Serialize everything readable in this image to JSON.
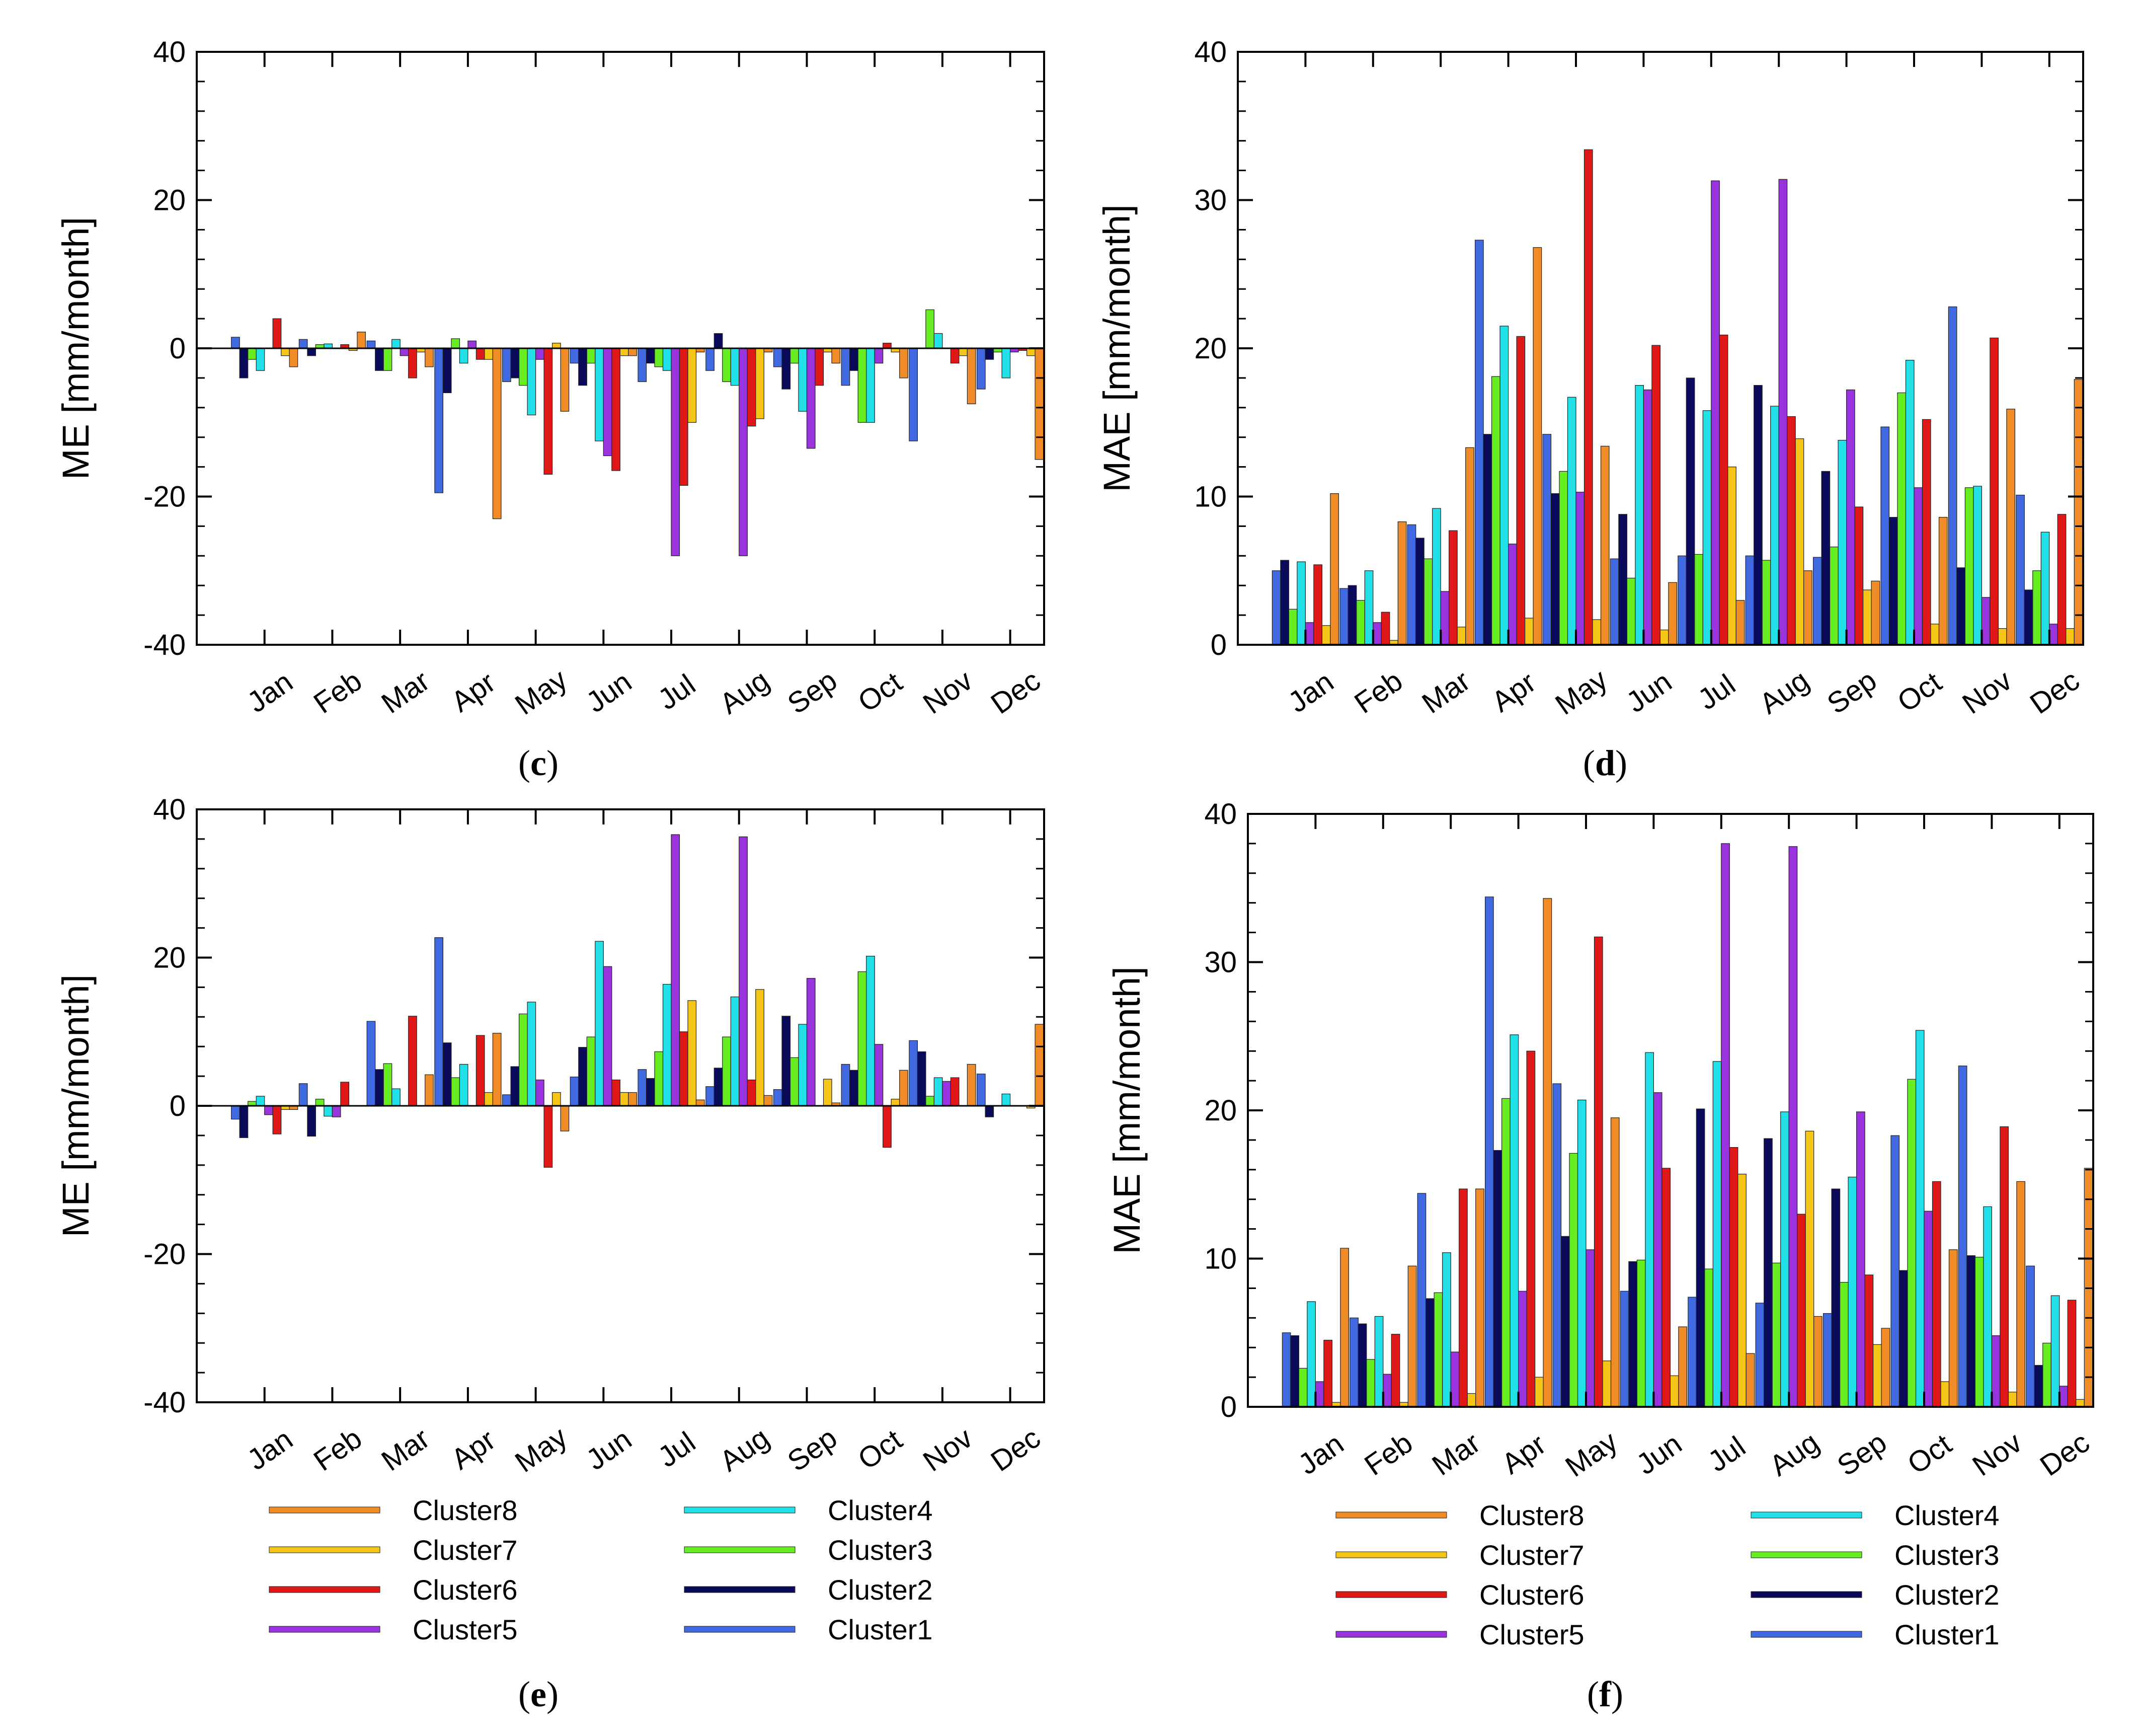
{
  "colors": {
    "Cluster1": "#4169e1",
    "Cluster2": "#0a0a5a",
    "Cluster3": "#66ee22",
    "Cluster4": "#22e0e8",
    "Cluster5": "#9933dd",
    "Cluster6": "#e01818",
    "Cluster7": "#f5c518",
    "Cluster8": "#f08c28"
  },
  "legend": {
    "left": [
      "Cluster8",
      "Cluster7",
      "Cluster6",
      "Cluster5"
    ],
    "right": [
      "Cluster4",
      "Cluster3",
      "Cluster2",
      "Cluster1"
    ]
  },
  "chart_data": [
    {
      "id": "c",
      "type": "bar",
      "caption_letter": "c",
      "ylabel": "ME [mm/month]",
      "ylim": [
        -40,
        40
      ],
      "yticks": [
        -40,
        -20,
        0,
        20,
        40
      ],
      "categories": [
        "Jan",
        "Feb",
        "Mar",
        "Apr",
        "May",
        "Jun",
        "Jul",
        "Aug",
        "Sep",
        "Oct",
        "Nov",
        "Dec"
      ],
      "series": [
        {
          "name": "Cluster1",
          "values": [
            1.5,
            1.2,
            1.0,
            -19.5,
            -4.5,
            -2.0,
            -4.5,
            -3.0,
            -2.5,
            -5.0,
            -12.5,
            -5.5
          ]
        },
        {
          "name": "Cluster2",
          "values": [
            -4.0,
            -1.0,
            -3.0,
            -6.0,
            -4.0,
            -5.0,
            -2.0,
            2.0,
            -5.5,
            -3.0,
            0.0,
            -1.5
          ]
        },
        {
          "name": "Cluster3",
          "values": [
            -1.5,
            0.5,
            -3.0,
            1.3,
            -5.0,
            -2.0,
            -2.5,
            -4.5,
            -2.0,
            -10.0,
            5.2,
            -0.5
          ]
        },
        {
          "name": "Cluster4",
          "values": [
            -3.0,
            0.6,
            1.2,
            -2.0,
            -9.0,
            -12.5,
            -3.0,
            -5.0,
            -8.5,
            -10.0,
            2.0,
            -4.0
          ]
        },
        {
          "name": "Cluster5",
          "values": [
            0.0,
            0.0,
            -1.0,
            1.0,
            -1.5,
            -14.5,
            -28.0,
            -28.0,
            -13.5,
            -2.0,
            0.0,
            -0.5
          ]
        },
        {
          "name": "Cluster6",
          "values": [
            4.0,
            0.5,
            -4.0,
            -1.5,
            -17.0,
            -16.5,
            -18.5,
            -10.5,
            -5.0,
            0.7,
            -2.0,
            -0.3
          ]
        },
        {
          "name": "Cluster7",
          "values": [
            -1.0,
            -0.3,
            -0.5,
            -1.5,
            0.7,
            -1.0,
            -10.0,
            -9.5,
            -0.5,
            -0.5,
            -1.0,
            -1.0
          ]
        },
        {
          "name": "Cluster8",
          "values": [
            -2.5,
            2.2,
            -2.5,
            -23.0,
            -8.5,
            -1.0,
            -0.5,
            -0.5,
            -2.0,
            -4.0,
            -7.5,
            -15.0
          ]
        }
      ]
    },
    {
      "id": "d",
      "type": "bar",
      "caption_letter": "d",
      "ylabel": "MAE [mm/month]",
      "ylim": [
        0,
        40
      ],
      "yticks": [
        0,
        10,
        20,
        30,
        40
      ],
      "categories": [
        "Jan",
        "Feb",
        "Mar",
        "Apr",
        "May",
        "Jun",
        "Jul",
        "Aug",
        "Sep",
        "Oct",
        "Nov",
        "Dec"
      ],
      "series": [
        {
          "name": "Cluster1",
          "values": [
            5.0,
            3.8,
            8.1,
            27.3,
            14.2,
            5.8,
            6.0,
            6.0,
            5.9,
            14.7,
            22.8,
            10.1
          ]
        },
        {
          "name": "Cluster2",
          "values": [
            5.7,
            4.0,
            7.2,
            14.2,
            10.2,
            8.8,
            18.0,
            17.5,
            11.7,
            8.6,
            5.2,
            3.7
          ]
        },
        {
          "name": "Cluster3",
          "values": [
            2.4,
            3.0,
            5.8,
            18.1,
            11.7,
            4.5,
            6.1,
            5.7,
            6.6,
            17.0,
            10.6,
            5.0
          ]
        },
        {
          "name": "Cluster4",
          "values": [
            5.6,
            5.0,
            9.2,
            21.5,
            16.7,
            17.5,
            15.8,
            16.1,
            13.8,
            19.2,
            10.7,
            7.6
          ]
        },
        {
          "name": "Cluster5",
          "values": [
            1.5,
            1.5,
            3.6,
            6.8,
            10.3,
            17.2,
            31.3,
            31.4,
            17.2,
            10.6,
            3.2,
            1.4
          ]
        },
        {
          "name": "Cluster6",
          "values": [
            5.4,
            2.2,
            7.7,
            20.8,
            33.4,
            20.2,
            20.9,
            15.4,
            9.3,
            15.2,
            20.7,
            8.8
          ]
        },
        {
          "name": "Cluster7",
          "values": [
            1.3,
            0.3,
            1.2,
            1.8,
            1.7,
            1.0,
            12.0,
            13.9,
            3.7,
            1.4,
            1.1,
            1.1
          ]
        },
        {
          "name": "Cluster8",
          "values": [
            10.2,
            8.3,
            13.3,
            26.8,
            13.4,
            4.2,
            3.0,
            5.0,
            4.3,
            8.6,
            15.9,
            17.9
          ]
        }
      ]
    },
    {
      "id": "e",
      "type": "bar",
      "caption_letter": "e",
      "ylabel": "ME [mm/month]",
      "ylim": [
        -40,
        40
      ],
      "yticks": [
        -40,
        -20,
        0,
        20,
        40
      ],
      "categories": [
        "Jan",
        "Feb",
        "Mar",
        "Apr",
        "May",
        "Jun",
        "Jul",
        "Aug",
        "Sep",
        "Oct",
        "Nov",
        "Dec"
      ],
      "series": [
        {
          "name": "Cluster1",
          "values": [
            -1.8,
            3.0,
            11.4,
            22.7,
            1.5,
            3.9,
            4.9,
            2.6,
            2.2,
            5.6,
            8.8,
            4.3
          ]
        },
        {
          "name": "Cluster2",
          "values": [
            -4.3,
            -4.1,
            4.9,
            8.5,
            5.3,
            7.9,
            3.7,
            5.1,
            12.1,
            4.8,
            7.3,
            -1.5
          ]
        },
        {
          "name": "Cluster3",
          "values": [
            0.6,
            0.9,
            5.7,
            3.8,
            12.4,
            9.3,
            7.3,
            9.3,
            6.5,
            18.1,
            1.3,
            0.0
          ]
        },
        {
          "name": "Cluster4",
          "values": [
            1.3,
            -1.4,
            2.3,
            5.6,
            14.0,
            22.2,
            16.4,
            14.7,
            11.0,
            20.2,
            3.8,
            1.6
          ]
        },
        {
          "name": "Cluster5",
          "values": [
            -1.2,
            -1.5,
            0.0,
            0.0,
            3.5,
            18.8,
            36.6,
            36.3,
            17.2,
            8.3,
            3.3,
            0.0
          ]
        },
        {
          "name": "Cluster6",
          "values": [
            -3.8,
            3.2,
            12.1,
            9.5,
            -8.3,
            3.5,
            10.0,
            3.5,
            0.0,
            -5.6,
            3.8,
            0.0
          ]
        },
        {
          "name": "Cluster7",
          "values": [
            -0.5,
            0.0,
            0.0,
            1.8,
            1.8,
            1.8,
            14.2,
            15.7,
            3.6,
            0.9,
            0.0,
            -0.3
          ]
        },
        {
          "name": "Cluster8",
          "values": [
            -0.5,
            0.0,
            4.2,
            9.8,
            -3.4,
            1.8,
            0.8,
            1.4,
            0.4,
            4.8,
            5.6,
            11.0
          ]
        }
      ]
    },
    {
      "id": "f",
      "type": "bar",
      "caption_letter": "f",
      "ylabel": "MAE [mm/month]",
      "ylim": [
        0,
        40
      ],
      "yticks": [
        0,
        10,
        20,
        30,
        40
      ],
      "categories": [
        "Jan",
        "Feb",
        "Mar",
        "Apr",
        "May",
        "Jun",
        "Jul",
        "Aug",
        "Sep",
        "Oct",
        "Nov",
        "Dec"
      ],
      "series": [
        {
          "name": "Cluster1",
          "values": [
            5.0,
            6.0,
            14.4,
            34.4,
            21.8,
            7.8,
            7.4,
            7.0,
            6.3,
            18.3,
            23.0,
            9.5
          ]
        },
        {
          "name": "Cluster2",
          "values": [
            4.8,
            5.6,
            7.3,
            17.3,
            11.5,
            9.8,
            20.1,
            18.1,
            14.7,
            9.2,
            10.2,
            2.8
          ]
        },
        {
          "name": "Cluster3",
          "values": [
            2.6,
            3.2,
            7.7,
            20.8,
            17.1,
            9.9,
            9.3,
            9.7,
            8.4,
            22.1,
            10.1,
            4.3
          ]
        },
        {
          "name": "Cluster4",
          "values": [
            7.1,
            6.1,
            10.4,
            25.1,
            20.7,
            23.9,
            23.3,
            19.9,
            15.5,
            25.4,
            13.5,
            7.5
          ]
        },
        {
          "name": "Cluster5",
          "values": [
            1.7,
            2.2,
            3.7,
            7.8,
            10.6,
            21.2,
            38.0,
            37.8,
            19.9,
            13.2,
            4.8,
            1.4
          ]
        },
        {
          "name": "Cluster6",
          "values": [
            4.5,
            4.9,
            14.7,
            24.0,
            31.7,
            16.1,
            17.5,
            13.0,
            8.9,
            15.2,
            18.9,
            7.2
          ]
        },
        {
          "name": "Cluster7",
          "values": [
            0.3,
            0.3,
            0.9,
            2.0,
            3.1,
            2.1,
            15.7,
            18.6,
            4.2,
            1.7,
            1.0,
            0.5
          ]
        },
        {
          "name": "Cluster8",
          "values": [
            10.7,
            9.5,
            14.7,
            34.3,
            19.5,
            5.4,
            3.6,
            6.1,
            5.3,
            10.6,
            15.2,
            16.1
          ]
        }
      ]
    }
  ]
}
